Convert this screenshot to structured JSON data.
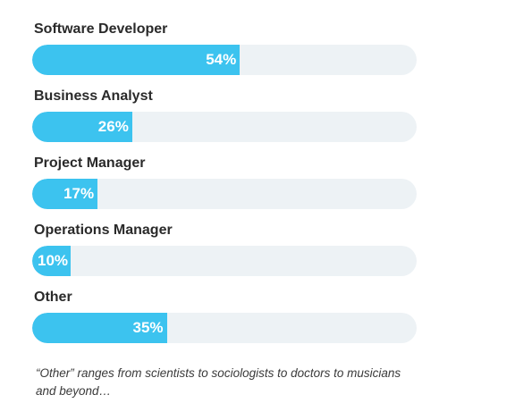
{
  "chart_data": {
    "type": "bar",
    "orientation": "horizontal",
    "categories": [
      "Software Developer",
      "Business Analyst",
      "Project Manager",
      "Operations Manager",
      "Other"
    ],
    "values": [
      54,
      26,
      17,
      10,
      35
    ],
    "value_labels": [
      "54%",
      "26%",
      "17%",
      "10%",
      "35%"
    ],
    "xlim": [
      0,
      100
    ],
    "unit": "%",
    "grid": false,
    "bar_color": "#3cc3ef",
    "track_color": "#edf2f5"
  },
  "note": "“Other” ranges from scientists to sociologists to doctors to musicians and beyond…"
}
